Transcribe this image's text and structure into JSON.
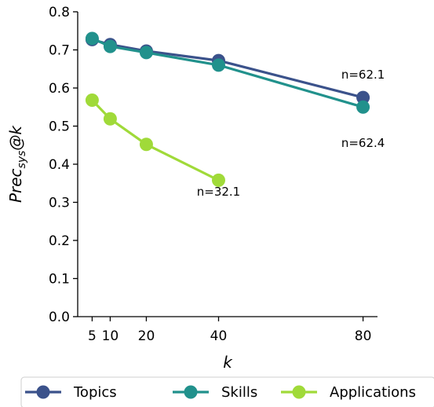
{
  "chart_data": {
    "type": "line",
    "xlabel": "k",
    "ylabel_main": "Prec",
    "ylabel_sub": "sys",
    "ylabel_suffix": "@k",
    "x_ticks": [
      5,
      10,
      20,
      40,
      80
    ],
    "y_ticks": [
      0.0,
      0.1,
      0.2,
      0.3,
      0.4,
      0.5,
      0.6,
      0.7,
      0.8
    ],
    "xlim": [
      1,
      84
    ],
    "ylim": [
      0.0,
      0.8
    ],
    "grid": false,
    "legend_position": "bottom",
    "series": [
      {
        "name": "Topics",
        "color": "#3b528b",
        "x": [
          5,
          10,
          20,
          40,
          80
        ],
        "y": [
          0.727,
          0.714,
          0.697,
          0.672,
          0.575
        ]
      },
      {
        "name": "Skills",
        "color": "#21918c",
        "x": [
          5,
          10,
          20,
          40,
          80
        ],
        "y": [
          0.73,
          0.709,
          0.693,
          0.66,
          0.55
        ]
      },
      {
        "name": "Applications",
        "color": "#a0da39",
        "x": [
          5,
          10,
          20,
          40
        ],
        "y": [
          0.568,
          0.519,
          0.452,
          0.358
        ]
      }
    ],
    "annotations": [
      {
        "text": "n=62.1",
        "x": 80,
        "y": 0.625
      },
      {
        "text": "n=62.4",
        "x": 80,
        "y": 0.445
      },
      {
        "text": "n=32.1",
        "x": 40,
        "y": 0.318
      }
    ]
  }
}
